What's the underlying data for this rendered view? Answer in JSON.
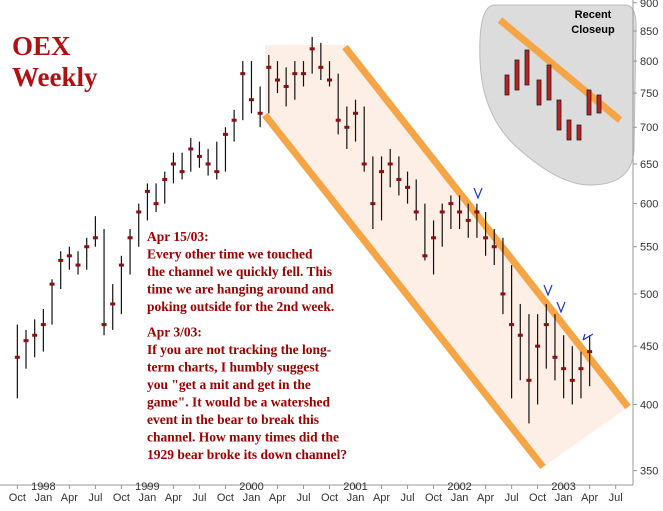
{
  "chart_data": {
    "type": "ohlc",
    "title": "OEX",
    "subtitle": "Weekly",
    "color": "#8b1010",
    "x": [
      "1997-10",
      "1997-11",
      "1997-12",
      "1998-01",
      "1998-02",
      "1998-03",
      "1998-04",
      "1998-05",
      "1998-06",
      "1998-07",
      "1998-08",
      "1998-09",
      "1998-10",
      "1998-11",
      "1998-12",
      "1999-01",
      "1999-02",
      "1999-03",
      "1999-04",
      "1999-05",
      "1999-06",
      "1999-07",
      "1999-08",
      "1999-09",
      "1999-10",
      "1999-11",
      "1999-12",
      "2000-01",
      "2000-02",
      "2000-03",
      "2000-04",
      "2000-05",
      "2000-06",
      "2000-07",
      "2000-08",
      "2000-09",
      "2000-10",
      "2000-11",
      "2000-12",
      "2001-01",
      "2001-02",
      "2001-03",
      "2001-04",
      "2001-05",
      "2001-06",
      "2001-07",
      "2001-08",
      "2001-09",
      "2001-10",
      "2001-11",
      "2001-12",
      "2002-01",
      "2002-02",
      "2002-03",
      "2002-04",
      "2002-05",
      "2002-06",
      "2002-07",
      "2002-08",
      "2002-09",
      "2002-10",
      "2002-11",
      "2002-12",
      "2003-01",
      "2003-02",
      "2003-03",
      "2003-04"
    ],
    "values": [
      440,
      455,
      460,
      470,
      510,
      535,
      540,
      530,
      550,
      560,
      470,
      490,
      530,
      560,
      590,
      615,
      600,
      630,
      650,
      640,
      670,
      660,
      650,
      640,
      690,
      710,
      780,
      740,
      720,
      790,
      770,
      760,
      780,
      780,
      820,
      790,
      770,
      710,
      700,
      720,
      650,
      600,
      640,
      650,
      630,
      620,
      590,
      540,
      560,
      590,
      600,
      590,
      580,
      590,
      560,
      550,
      500,
      470,
      460,
      420,
      450,
      470,
      440,
      430,
      420,
      430,
      445
    ],
    "high": [
      470,
      465,
      475,
      485,
      515,
      545,
      550,
      545,
      560,
      585,
      570,
      510,
      540,
      570,
      600,
      625,
      625,
      640,
      665,
      665,
      685,
      680,
      670,
      680,
      700,
      725,
      800,
      800,
      760,
      810,
      800,
      790,
      800,
      800,
      840,
      830,
      800,
      780,
      730,
      740,
      730,
      660,
      660,
      670,
      660,
      640,
      630,
      600,
      580,
      600,
      610,
      610,
      600,
      600,
      590,
      570,
      560,
      530,
      490,
      480,
      480,
      490,
      480,
      460,
      450,
      445,
      460
    ],
    "low": [
      405,
      430,
      440,
      445,
      470,
      505,
      525,
      520,
      525,
      550,
      460,
      465,
      480,
      520,
      550,
      580,
      590,
      600,
      625,
      630,
      640,
      645,
      635,
      630,
      640,
      680,
      710,
      720,
      700,
      720,
      750,
      730,
      740,
      760,
      780,
      770,
      760,
      690,
      670,
      680,
      640,
      570,
      580,
      620,
      610,
      600,
      580,
      535,
      520,
      550,
      570,
      570,
      560,
      560,
      540,
      530,
      480,
      405,
      420,
      385,
      400,
      430,
      420,
      405,
      400,
      405,
      415
    ],
    "xlim": [
      "1997-08",
      "2003-09"
    ],
    "xticks": [
      {
        "value": "1997-10",
        "label": "Oct"
      },
      {
        "value": "1998-01",
        "label": "Jan"
      },
      {
        "value": "1998-04",
        "label": "Apr"
      },
      {
        "value": "1998-07",
        "label": "Jul"
      },
      {
        "value": "1998-10",
        "label": "Oct"
      },
      {
        "value": "1999-01",
        "label": "Jan"
      },
      {
        "value": "1999-04",
        "label": "Apr"
      },
      {
        "value": "1999-07",
        "label": "Jul"
      },
      {
        "value": "1999-10",
        "label": "Oct"
      },
      {
        "value": "2000-01",
        "label": "Jan"
      },
      {
        "value": "2000-04",
        "label": "Apr"
      },
      {
        "value": "2000-07",
        "label": "Jul"
      },
      {
        "value": "2000-10",
        "label": "Oct"
      },
      {
        "value": "2001-01",
        "label": "Jan"
      },
      {
        "value": "2001-04",
        "label": "Apr"
      },
      {
        "value": "2001-07",
        "label": "Jul"
      },
      {
        "value": "2001-10",
        "label": "Oct"
      },
      {
        "value": "2002-01",
        "label": "Jan"
      },
      {
        "value": "2002-04",
        "label": "Apr"
      },
      {
        "value": "2002-07",
        "label": "Jul"
      },
      {
        "value": "2002-10",
        "label": "Oct"
      },
      {
        "value": "2003-01",
        "label": "Jan"
      },
      {
        "value": "2003-04",
        "label": "Apr"
      },
      {
        "value": "2003-07",
        "label": "Jul"
      }
    ],
    "year_ticks": [
      1998,
      1999,
      2000,
      2001,
      2002,
      2003
    ],
    "ylim": [
      340,
      905
    ],
    "yticks": [
      350,
      400,
      450,
      500,
      550,
      600,
      650,
      700,
      750,
      800,
      850,
      900
    ],
    "log_y": true,
    "annotations": [
      [
        "Apr 15/03:",
        "Every other time we touched",
        "the channel we quickly fell. This",
        "time we are hanging around and",
        "poking outside for the 2nd week."
      ],
      [
        "Apr 3/03:",
        "If you are not tracking the long-",
        "term charts, I humbly suggest",
        "you \"get a mit and get in the",
        "game\". It would be a watershed",
        "event in the bear to break this",
        "channel. How many times did the",
        "1929 bear broke its down channel?"
      ]
    ],
    "inset_title": [
      "Recent",
      "Closeup"
    ]
  }
}
